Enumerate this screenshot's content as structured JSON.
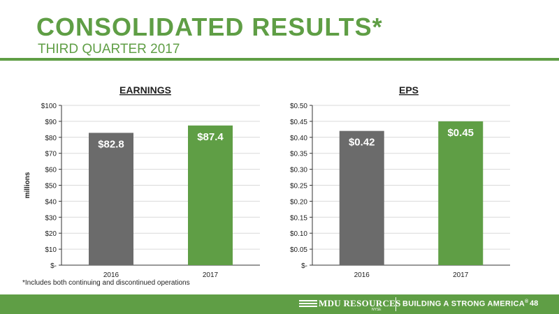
{
  "header": {
    "title": "CONSOLIDATED RESULTS*",
    "subtitle": "THIRD QUARTER 2017"
  },
  "footnote": "*Includes both continuing and discontinued operations",
  "footer": {
    "logo_text": "MDU RESOURCES",
    "logo_sub": "NYSE",
    "tagline": "BUILDING A STRONG AMERICA",
    "tagline_mark": "®",
    "page_number": "48"
  },
  "colors": {
    "accent": "#5f9e45",
    "bar_2016": "#6b6b6b",
    "bar_2017": "#5f9e45"
  },
  "chart_data": [
    {
      "type": "bar",
      "title": "EARNINGS",
      "ylabel": "millions",
      "xlabel": "",
      "categories": [
        "2016",
        "2017"
      ],
      "values": [
        82.8,
        87.4
      ],
      "data_labels": [
        "$82.8",
        "$87.4"
      ],
      "ylim": [
        0,
        100
      ],
      "yticks": [
        0,
        10,
        20,
        30,
        40,
        50,
        60,
        70,
        80,
        90,
        100
      ],
      "ytick_labels": [
        "$-",
        "$10",
        "$20",
        "$30",
        "$40",
        "$50",
        "$60",
        "$70",
        "$80",
        "$90",
        "$100"
      ],
      "grid": true,
      "legend": "none"
    },
    {
      "type": "bar",
      "title": "EPS",
      "ylabel": "",
      "xlabel": "",
      "categories": [
        "2016",
        "2017"
      ],
      "values": [
        0.42,
        0.45
      ],
      "data_labels": [
        "$0.42",
        "$0.45"
      ],
      "ylim": [
        0,
        0.5
      ],
      "yticks": [
        0,
        0.05,
        0.1,
        0.15,
        0.2,
        0.25,
        0.3,
        0.35,
        0.4,
        0.45,
        0.5
      ],
      "ytick_labels": [
        "$-",
        "$0.05",
        "$0.10",
        "$0.15",
        "$0.20",
        "$0.25",
        "$0.30",
        "$0.35",
        "$0.40",
        "$0.45",
        "$0.50"
      ],
      "grid": true,
      "legend": "none"
    }
  ]
}
